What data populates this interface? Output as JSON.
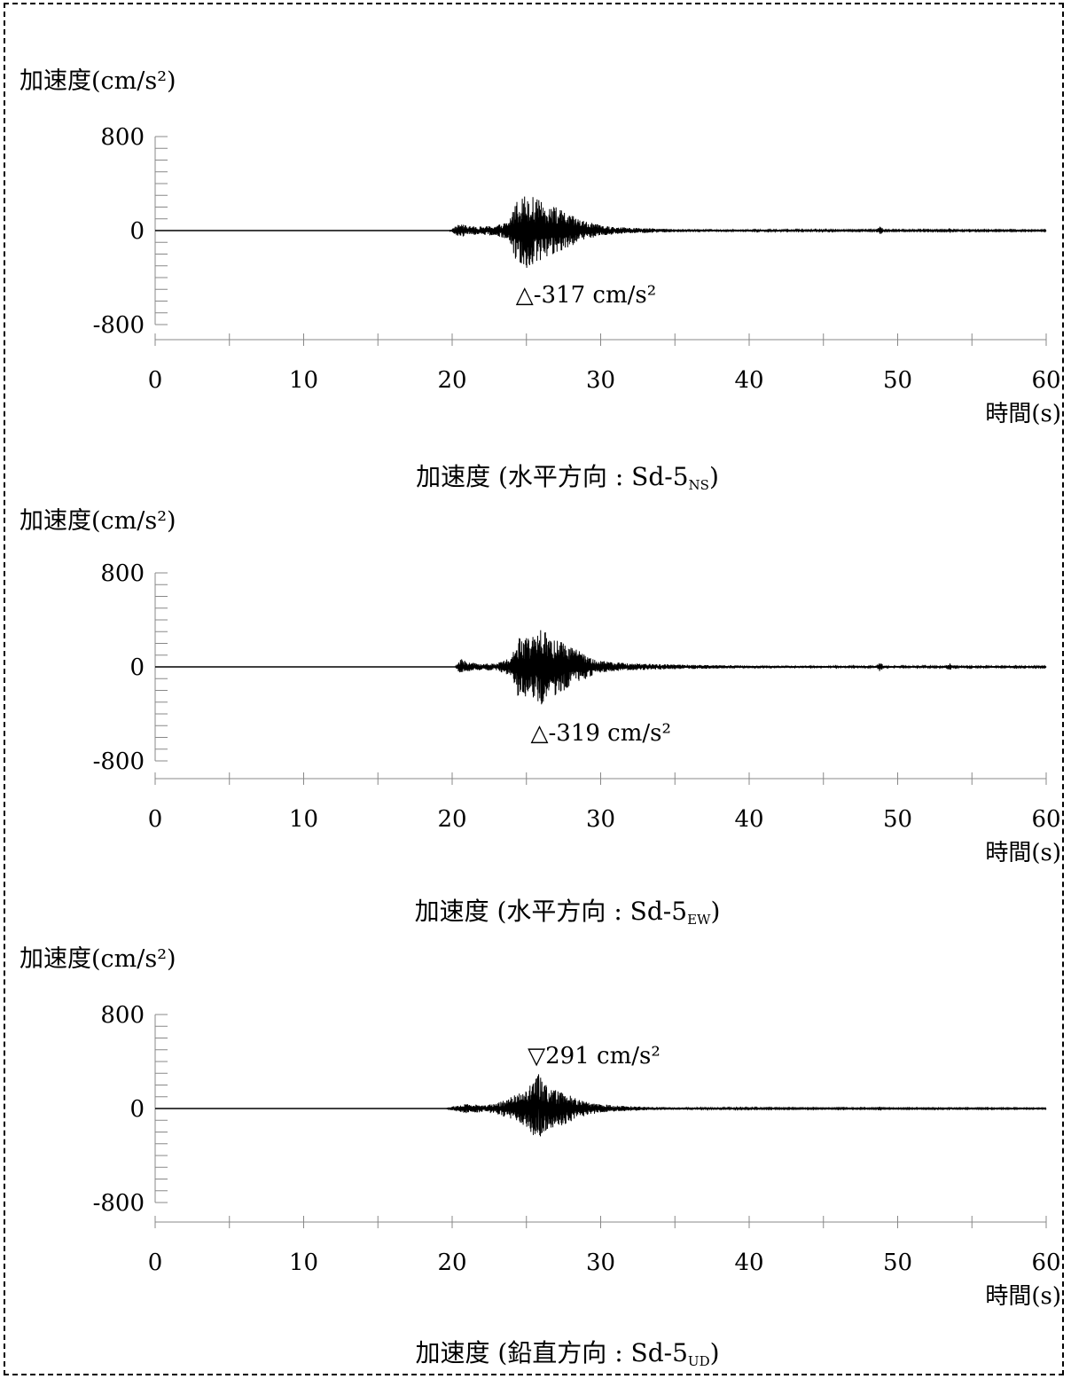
{
  "chart_data": [
    {
      "type": "line",
      "ylabel": "加速度(cm/s²)",
      "xlabel": "時間(s)",
      "ylim": [
        -800,
        800
      ],
      "xlim": [
        0,
        60
      ],
      "yticks": [
        "800",
        "0",
        "-800"
      ],
      "xticks": [
        "0",
        "10",
        "20",
        "30",
        "40",
        "50",
        "60"
      ],
      "annotation": "△-317 cm/s²",
      "annotation_x": 25.0,
      "peak": -317,
      "caption_main": "加速度 (水平方向 : Sd-5",
      "caption_sub": "NS",
      "caption_end": ")",
      "envelope": [
        [
          0,
          0
        ],
        [
          19.8,
          0
        ],
        [
          20.5,
          60
        ],
        [
          21,
          40
        ],
        [
          22,
          35
        ],
        [
          23,
          45
        ],
        [
          23.8,
          80
        ],
        [
          24.3,
          260
        ],
        [
          25,
          317
        ],
        [
          26,
          250
        ],
        [
          27,
          200
        ],
        [
          28,
          130
        ],
        [
          29,
          80
        ],
        [
          30,
          45
        ],
        [
          31,
          30
        ],
        [
          33,
          20
        ],
        [
          35,
          14
        ],
        [
          40,
          9
        ],
        [
          45,
          7
        ],
        [
          48.5,
          6
        ],
        [
          48.8,
          40
        ],
        [
          49.1,
          6
        ],
        [
          53.2,
          6
        ],
        [
          53.5,
          25
        ],
        [
          53.8,
          6
        ],
        [
          60,
          5
        ]
      ]
    },
    {
      "type": "line",
      "ylabel": "加速度(cm/s²)",
      "xlabel": "時間(s)",
      "ylim": [
        -800,
        800
      ],
      "xlim": [
        0,
        60
      ],
      "yticks": [
        "800",
        "0",
        "-800"
      ],
      "xticks": [
        "0",
        "10",
        "20",
        "30",
        "40",
        "50",
        "60"
      ],
      "annotation": "△-319 cm/s²",
      "annotation_x": 26.0,
      "peak": -319,
      "caption_main": "加速度 (水平方向 : Sd-5",
      "caption_sub": "EW",
      "caption_end": ")",
      "envelope": [
        [
          0,
          0
        ],
        [
          20.2,
          0
        ],
        [
          20.6,
          70
        ],
        [
          21,
          40
        ],
        [
          22,
          30
        ],
        [
          23,
          30
        ],
        [
          24,
          80
        ],
        [
          24.5,
          280
        ],
        [
          25.2,
          250
        ],
        [
          26,
          319
        ],
        [
          27,
          240
        ],
        [
          28,
          170
        ],
        [
          28.8,
          120
        ],
        [
          29.5,
          70
        ],
        [
          30,
          50
        ],
        [
          32,
          30
        ],
        [
          35,
          20
        ],
        [
          40,
          12
        ],
        [
          45,
          9
        ],
        [
          48.5,
          8
        ],
        [
          48.8,
          40
        ],
        [
          49.1,
          8
        ],
        [
          53.2,
          8
        ],
        [
          53.5,
          35
        ],
        [
          53.8,
          8
        ],
        [
          60,
          6
        ]
      ]
    },
    {
      "type": "line",
      "ylabel": "加速度(cm/s²)",
      "xlabel": "時間(s)",
      "ylim": [
        -800,
        800
      ],
      "xlim": [
        0,
        60
      ],
      "yticks": [
        "800",
        "0",
        "-800"
      ],
      "xticks": [
        "0",
        "10",
        "20",
        "30",
        "40",
        "50",
        "60"
      ],
      "annotation": "▽291 cm/s²",
      "annotation_x": 25.8,
      "peak": 291,
      "caption_main": "加速度 (鉛直方向 : Sd-5",
      "caption_sub": "UD",
      "caption_end": ")",
      "envelope": [
        [
          0,
          0
        ],
        [
          19.6,
          0
        ],
        [
          20.2,
          25
        ],
        [
          21,
          40
        ],
        [
          22,
          30
        ],
        [
          23,
          45
        ],
        [
          24,
          100
        ],
        [
          25,
          160
        ],
        [
          25.8,
          291
        ],
        [
          26.5,
          170
        ],
        [
          27.5,
          140
        ],
        [
          28.5,
          80
        ],
        [
          29.5,
          45
        ],
        [
          31,
          25
        ],
        [
          33,
          15
        ],
        [
          35,
          10
        ],
        [
          40,
          6
        ],
        [
          45,
          5
        ],
        [
          48.5,
          5
        ],
        [
          48.8,
          20
        ],
        [
          49.1,
          5
        ],
        [
          53.2,
          5
        ],
        [
          53.5,
          15
        ],
        [
          53.8,
          5
        ],
        [
          60,
          4
        ]
      ]
    }
  ]
}
